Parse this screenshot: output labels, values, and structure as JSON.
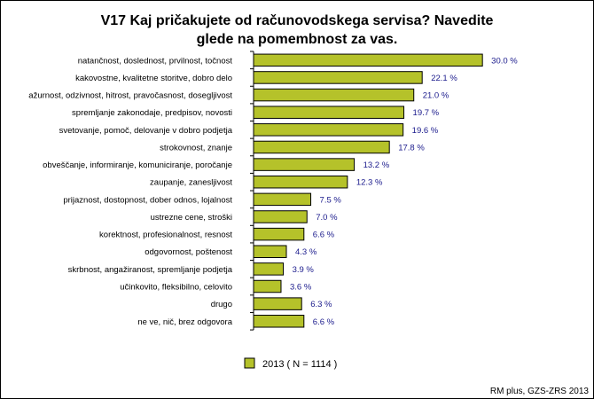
{
  "chart_data": {
    "type": "bar",
    "orientation": "horizontal",
    "title": "V17 Kaj pričakujete od računovodskega servisa? Navedite glede na pomembnost za vas.",
    "title_lines": [
      "V17 Kaj pričakujete od računovodskega servisa? Navedite",
      "glede na pomembnost za vas."
    ],
    "categories": [
      "natančnost, doslednost, prvilnost, točnost",
      "kakovostne, kvalitetne storitve, dobro delo",
      "ažurnost, odzivnost, hitrost, pravočasnost, dosegljivost",
      "spremljanje zakonodaje, predpisov, novosti",
      "svetovanje, pomoč, delovanje v dobro podjetja",
      "strokovnost, znanje",
      "obveščanje, informiranje, komuniciranje, poročanje",
      "zaupanje, zanesljivost",
      "prijaznost, dostopnost, dober odnos, lojalnost",
      "ustrezne cene, stroški",
      "korektnost, profesionalnost, resnost",
      "odgovornost, poštenost",
      "skrbnost, angažiranost, spremljanje podjetja",
      "učinkovito, fleksibilno, celovito",
      "drugo",
      "ne ve, nič, brez odgovora"
    ],
    "series": [
      {
        "name": "2013 ( N = 1114 )",
        "values": [
          30.0,
          22.1,
          21.0,
          19.7,
          19.6,
          17.8,
          13.2,
          12.3,
          7.5,
          7.0,
          6.6,
          4.3,
          3.9,
          3.6,
          6.3,
          6.6
        ],
        "labels": [
          "30.0 %",
          "22.1 %",
          "21.0 %",
          "19.7 %",
          "19.6 %",
          "17.8 %",
          "13.2 %",
          "12.3 %",
          "7.5 %",
          "7.0 %",
          "6.6 %",
          "4.3 %",
          "3.9 %",
          "3.6 %",
          "6.3 %",
          "6.6 %"
        ]
      }
    ],
    "xlim": [
      0,
      33
    ],
    "grid": false,
    "legend": "bottom",
    "colors": {
      "bar": "#b5c22a",
      "label": "#1a1a8c",
      "axis": "#000000"
    },
    "source": "RM plus, GZS-ZRS 2013"
  }
}
